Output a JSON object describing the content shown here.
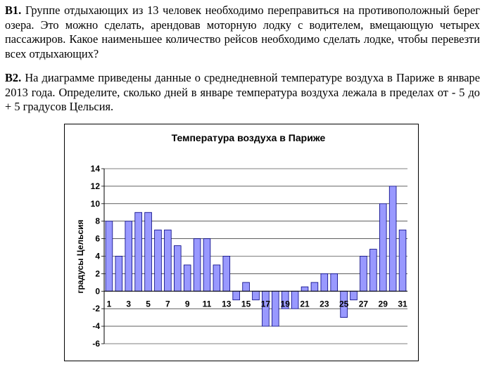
{
  "task_b1": {
    "label": "В1.",
    "text": "Группе отдыхающих из 13 человек необходимо переправиться на противоположный берег озера. Это можно сделать, арендовав моторную лодку с водителем, вмещающую четырех пассажиров. Какое наименьшее количество рейсов необходимо сделать лодке, чтобы перевезти всех отдыхающих?"
  },
  "task_b2": {
    "label": "В2.",
    "text": "На диаграмме приведены данные о среднедневной температуре воздуха в Париже в январе 2013 года. Определите, сколько дней в январе температура воздуха лежала в пределах от - 5 до + 5 градусов Цельсия."
  },
  "chart_data": {
    "type": "bar",
    "title": "Температура воздуха в Париже",
    "ylabel": "градусы Цельсия",
    "xlabel": "",
    "ylim": [
      -6,
      14
    ],
    "yticks": [
      14,
      12,
      10,
      8,
      6,
      4,
      2,
      0,
      -2,
      -4,
      -6
    ],
    "x_tick_labels": [
      "1",
      "3",
      "5",
      "7",
      "9",
      "11",
      "13",
      "15",
      "17",
      "19",
      "21",
      "23",
      "25",
      "27",
      "29",
      "31"
    ],
    "categories": [
      1,
      2,
      3,
      4,
      5,
      6,
      7,
      8,
      9,
      10,
      11,
      12,
      13,
      14,
      15,
      16,
      17,
      18,
      19,
      20,
      21,
      22,
      23,
      24,
      25,
      26,
      27,
      28,
      29,
      30,
      31
    ],
    "values": [
      8,
      4,
      8,
      9,
      9,
      7,
      7,
      5.2,
      3,
      6,
      6,
      3,
      4,
      -1,
      1,
      -1,
      -4,
      -4,
      -2,
      -2,
      0.5,
      1,
      2,
      2,
      -3,
      -1,
      4,
      4.8,
      10,
      12,
      7
    ],
    "bar_color": "#9999ff",
    "bar_edge": "#000080",
    "grid": true,
    "legend": "none"
  }
}
